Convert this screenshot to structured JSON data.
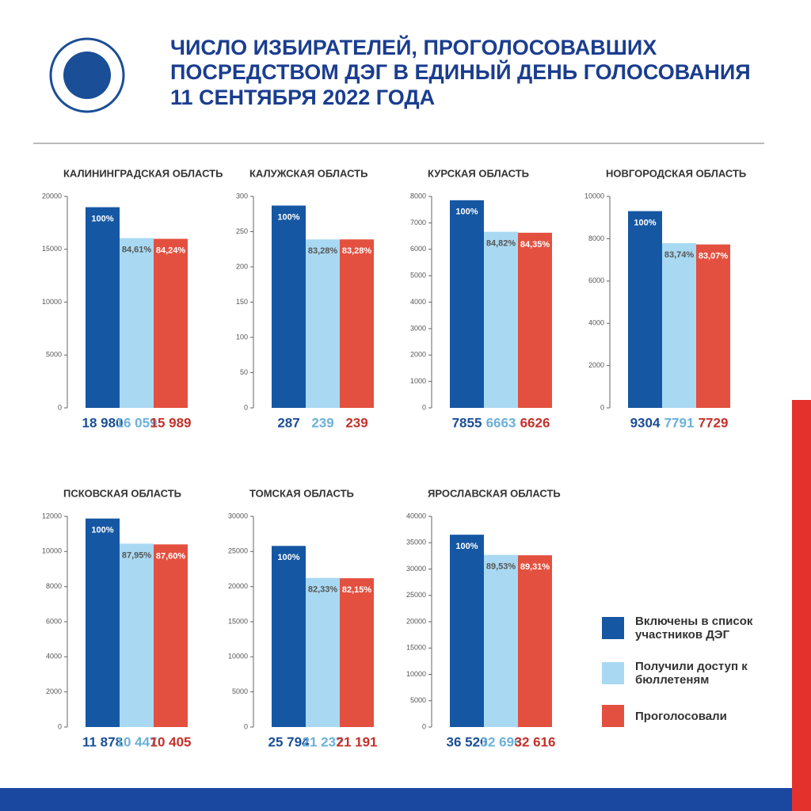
{
  "header": {
    "title": [
      "ЧИСЛО ИЗБИРАТЕЛЕЙ, ПРОГОЛОСОВАВШИХ",
      "ПОСРЕДСТВОМ ДЭГ В ЕДИНЫЙ ДЕНЬ ГОЛОСОВАНИЯ",
      "11 СЕНТЯБРЯ 2022 ГОДА"
    ]
  },
  "legend": [
    {
      "name": "Включены в список участников ДЭГ",
      "color": "#1557a3",
      "label_color": "#1a4e96"
    },
    {
      "name": "Получили доступ к бюллетеням",
      "color": "#a9d9f2",
      "label_color": "#6ab0d8"
    },
    {
      "name": "Проголосовали",
      "color": "#e4503f",
      "label_color": "#c3312a"
    }
  ],
  "chart_data": [
    {
      "type": "bar",
      "title": "КАЛИНИНГРАДСКАЯ ОБЛАСТЬ",
      "values": [
        18980,
        16059,
        15989
      ],
      "value_labels": [
        "18 980",
        "16 059",
        "15 989"
      ],
      "pct_labels": [
        "100%",
        "84,61%",
        "84,24%"
      ],
      "ylim": [
        0,
        20000
      ],
      "yticks": [
        0,
        5000,
        10000,
        15000,
        20000
      ]
    },
    {
      "type": "bar",
      "title": "КАЛУЖСКАЯ ОБЛАСТЬ",
      "values": [
        287,
        239,
        239
      ],
      "pct_labels": [
        "100%",
        "83,28%",
        "83,28%"
      ],
      "ylim": [
        0,
        300
      ],
      "yticks": [
        0,
        50,
        100,
        150,
        200,
        250,
        300
      ]
    },
    {
      "type": "bar",
      "title": "КУРСКАЯ ОБЛАСТЬ",
      "values": [
        7855,
        6663,
        6626
      ],
      "pct_labels": [
        "100%",
        "84,82%",
        "84,35%"
      ],
      "ylim": [
        0,
        8000
      ],
      "yticks": [
        0,
        1000,
        2000,
        3000,
        4000,
        5000,
        6000,
        7000,
        8000
      ]
    },
    {
      "type": "bar",
      "title": "НОВГОРОДСКАЯ ОБЛАСТЬ",
      "values": [
        9304,
        7791,
        7729
      ],
      "pct_labels": [
        "100%",
        "83,74%",
        "83,07%"
      ],
      "ylim": [
        0,
        10000
      ],
      "yticks": [
        0,
        2000,
        4000,
        6000,
        8000,
        10000
      ]
    },
    {
      "type": "bar",
      "title": "ПСКОВСКАЯ ОБЛАСТЬ",
      "values": [
        11878,
        10447,
        10405
      ],
      "value_labels": [
        "11 878",
        "10 447",
        "10 405"
      ],
      "pct_labels": [
        "100%",
        "87,95%",
        "87,60%"
      ],
      "ylim": [
        0,
        12000
      ],
      "yticks": [
        0,
        2000,
        4000,
        6000,
        8000,
        10000,
        12000
      ]
    },
    {
      "type": "bar",
      "title": "ТОМСКАЯ ОБЛАСТЬ",
      "values": [
        25794,
        21237,
        21191
      ],
      "value_labels": [
        "25 794",
        "21 237",
        "21 191"
      ],
      "pct_labels": [
        "100%",
        "82,33%",
        "82,15%"
      ],
      "ylim": [
        0,
        30000
      ],
      "yticks": [
        0,
        5000,
        10000,
        15000,
        20000,
        25000,
        30000
      ]
    },
    {
      "type": "bar",
      "title": "ЯРОСЛАВСКАЯ ОБЛАСТЬ",
      "values": [
        36520,
        32696,
        32616
      ],
      "value_labels": [
        "36 520",
        "32 696",
        "32 616"
      ],
      "pct_labels": [
        "100%",
        "89,53%",
        "89,31%"
      ],
      "ylim": [
        0,
        40000
      ],
      "yticks": [
        0,
        5000,
        10000,
        15000,
        20000,
        25000,
        30000,
        35000,
        40000
      ]
    }
  ]
}
